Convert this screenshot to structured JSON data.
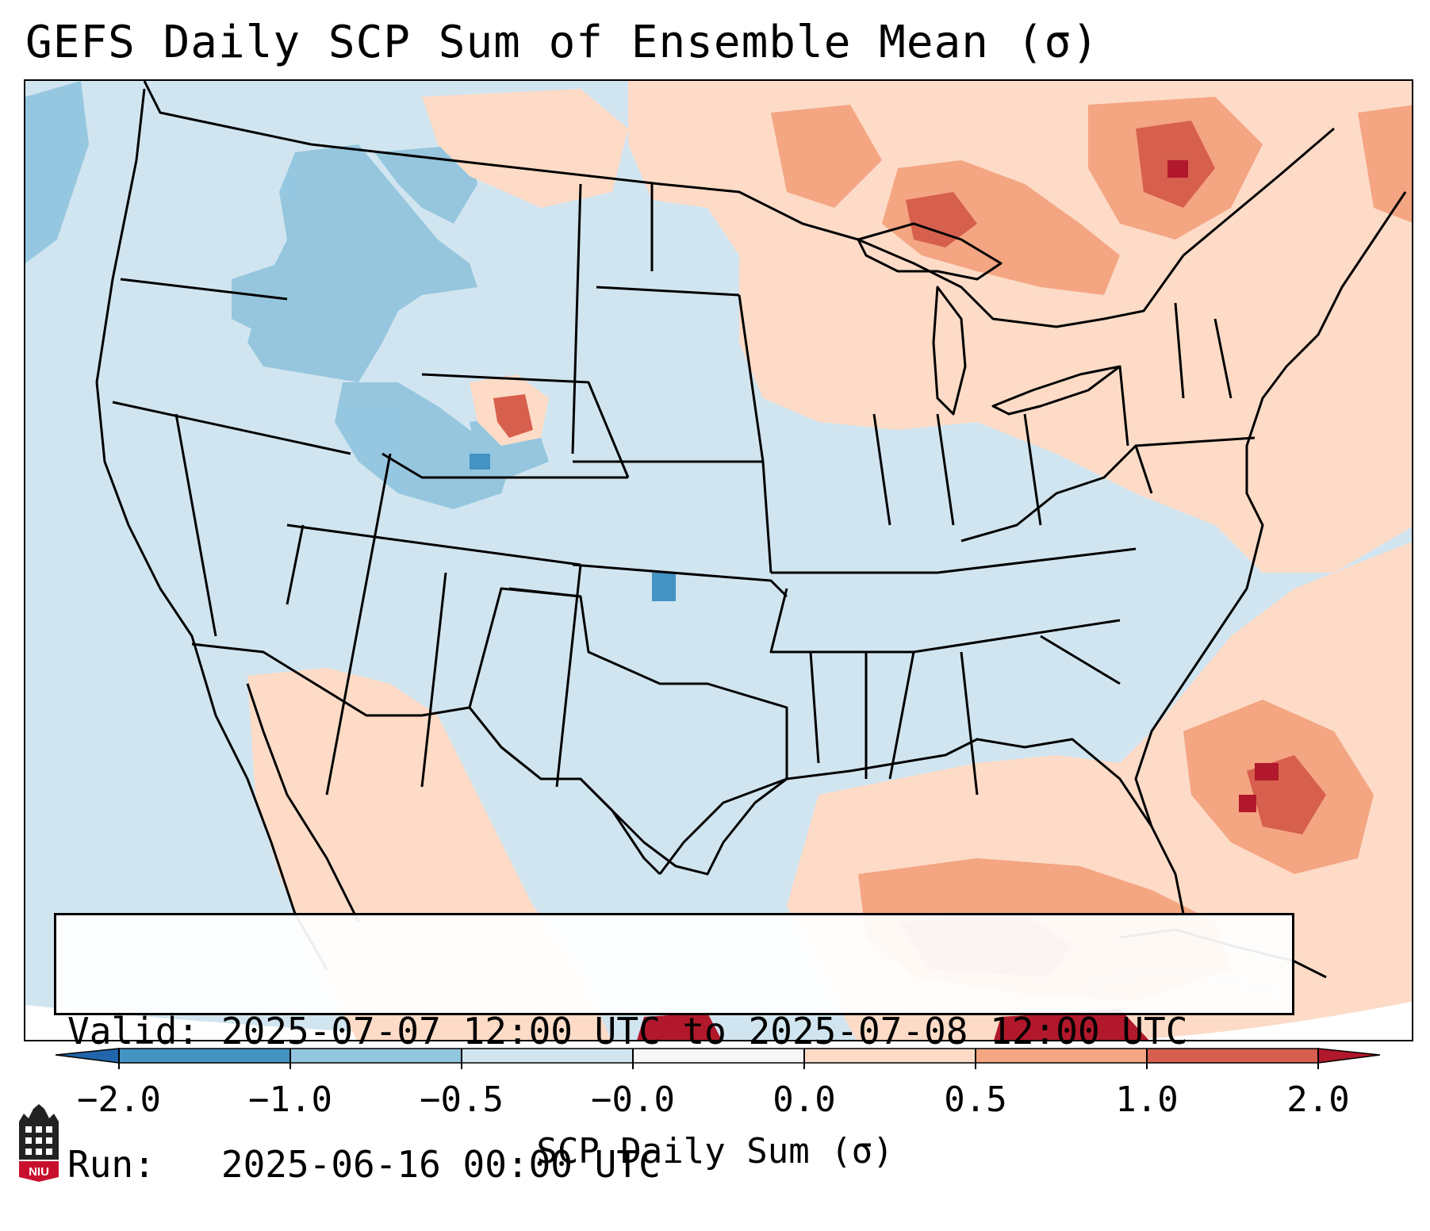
{
  "title": "GEFS Daily SCP Sum of Ensemble Mean (σ)",
  "info": {
    "valid_prefix": "Valid:",
    "valid_text": "2025-07-07 12:00 UTC to 2025-07-08 12:00 UTC",
    "run_prefix": "Run:",
    "run_text": "2025-06-16 00:00 UTC"
  },
  "colorbar": {
    "label": "SCP Daily Sum (σ)",
    "ticks": [
      "−2.0",
      "−1.0",
      "−0.5",
      "−0.0",
      "0.0",
      "0.5",
      "1.0",
      "2.0"
    ],
    "colors": [
      "#4393c3",
      "#92c5de",
      "#d1e5f0",
      "#f7f7f7",
      "#fddbc7",
      "#f4a582",
      "#d6604d",
      "#b2182b"
    ],
    "extend_low_color": "#2166ac",
    "extend_high_color": "#b2182b"
  },
  "logo": {
    "text": "NIU",
    "color": "#c8102e"
  }
}
